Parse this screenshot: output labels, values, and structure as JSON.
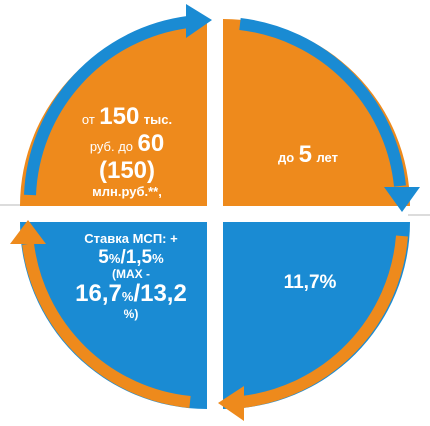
{
  "colors": {
    "orange": "#EE8A1C",
    "blue": "#1A8BD3",
    "text": "#FFFFFF",
    "guide": "#B8B8B8"
  },
  "quadrants": {
    "top_left": {
      "line1_prefix": "от",
      "line1_value": "150",
      "line1_suffix": "тыс.",
      "line2_prefix": "руб. до",
      "line2_value": "60",
      "line3": "(150)",
      "line4": "млн.руб.**,"
    },
    "top_right": {
      "prefix": "до",
      "value": "5",
      "suffix": "лет"
    },
    "bottom_left": {
      "line1": "Ставка МСП: +",
      "line2_a": "5",
      "line2_b": "%",
      "line2_c": "/1,5",
      "line2_d": "%",
      "line3": "(MAX -",
      "line4_a": "16,7",
      "line4_b": "%",
      "line4_c": "/13,2",
      "line5": "%)"
    },
    "bottom_right": {
      "value": "11,7%"
    }
  }
}
